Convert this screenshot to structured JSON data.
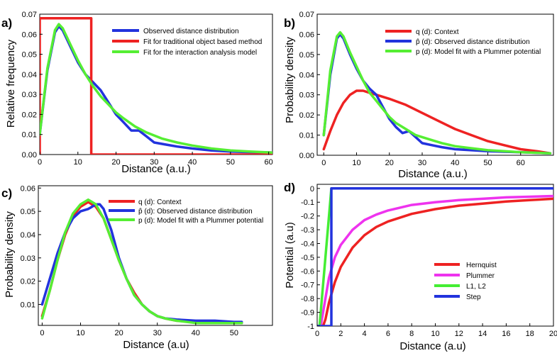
{
  "chart_data": [
    {
      "type": "line",
      "panel_label": "a)",
      "xlabel": "Distance (a.u.)",
      "ylabel": "Relative frequency",
      "xlim": [
        0,
        61
      ],
      "ylim": [
        0,
        0.07
      ],
      "xticks": [
        0,
        10,
        20,
        30,
        40,
        50,
        60
      ],
      "yticks": [
        0,
        0.01,
        0.02,
        0.03,
        0.04,
        0.05,
        0.06,
        0.07
      ],
      "ytick_labels": [
        "0.00",
        "0.01",
        "0.02",
        "0.03",
        "0.04",
        "0.05",
        "0.06",
        "0.07"
      ],
      "legend_position": "top-right",
      "series": [
        {
          "name": "Observed distance distribution",
          "color": "#2233dd",
          "x": [
            0,
            2,
            4,
            5,
            6,
            8,
            10,
            12,
            14,
            16,
            18,
            20,
            22,
            24,
            26,
            28,
            30,
            33,
            36,
            40,
            45,
            50,
            55,
            61
          ],
          "y": [
            0.01,
            0.042,
            0.061,
            0.064,
            0.062,
            0.054,
            0.046,
            0.04,
            0.036,
            0.032,
            0.026,
            0.02,
            0.016,
            0.012,
            0.012,
            0.009,
            0.006,
            0.005,
            0.004,
            0.003,
            0.002,
            0.0015,
            0.0012,
            0.001
          ]
        },
        {
          "name": "Fit for traditional object based method",
          "color": "#ee2222",
          "x": [
            0,
            0,
            13.5,
            13.5,
            61
          ],
          "y": [
            0,
            0.068,
            0.068,
            0,
            0
          ]
        },
        {
          "name": "Fit for the interaction analysis model",
          "color": "#55ee33",
          "x": [
            0,
            2,
            4,
            5,
            6,
            8,
            10,
            12,
            14,
            16,
            18,
            20,
            22,
            25,
            28,
            32,
            36,
            40,
            45,
            50,
            55,
            61
          ],
          "y": [
            0.01,
            0.043,
            0.062,
            0.065,
            0.063,
            0.055,
            0.047,
            0.04,
            0.034,
            0.029,
            0.025,
            0.021,
            0.018,
            0.014,
            0.011,
            0.008,
            0.006,
            0.0045,
            0.003,
            0.002,
            0.0015,
            0.001
          ]
        }
      ]
    },
    {
      "type": "line",
      "panel_label": "b)",
      "xlabel": "Distance (a.u.)",
      "ylabel": "Probability density",
      "xlim": [
        -2,
        70
      ],
      "ylim": [
        0,
        0.07
      ],
      "xticks": [
        0,
        10,
        20,
        30,
        40,
        50,
        60
      ],
      "yticks": [
        0,
        0.01,
        0.02,
        0.03,
        0.04,
        0.05,
        0.06,
        0.07
      ],
      "ytick_labels": [
        "0.00",
        "0.01",
        "0.02",
        "0.03",
        "0.04",
        "0.05",
        "0.06",
        "0.07"
      ],
      "legend_position": "top-right",
      "series": [
        {
          "name": "q (d): Context",
          "color": "#ee2222",
          "x": [
            0,
            2,
            4,
            6,
            8,
            10,
            12,
            14,
            16,
            20,
            25,
            30,
            35,
            40,
            45,
            50,
            55,
            60,
            65,
            69
          ],
          "y": [
            0.003,
            0.012,
            0.02,
            0.026,
            0.03,
            0.032,
            0.032,
            0.031,
            0.03,
            0.028,
            0.025,
            0.021,
            0.017,
            0.013,
            0.01,
            0.007,
            0.005,
            0.003,
            0.002,
            0.001
          ]
        },
        {
          "name": "p̂ (d): Observed distance distribution",
          "color": "#2233dd",
          "x": [
            0,
            2,
            4,
            5,
            6,
            8,
            10,
            12,
            14,
            16,
            18,
            20,
            22,
            24,
            26,
            28,
            30,
            33,
            36,
            40,
            45,
            50,
            60,
            69
          ],
          "y": [
            0.01,
            0.04,
            0.058,
            0.06,
            0.058,
            0.05,
            0.043,
            0.037,
            0.033,
            0.03,
            0.024,
            0.018,
            0.014,
            0.011,
            0.012,
            0.009,
            0.006,
            0.005,
            0.004,
            0.003,
            0.0025,
            0.002,
            0.0015,
            0.001
          ]
        },
        {
          "name": "p (d): Model fit with a Plummer potential",
          "color": "#55ee33",
          "x": [
            0,
            2,
            4,
            5,
            6,
            8,
            10,
            12,
            14,
            16,
            18,
            20,
            22,
            25,
            28,
            32,
            36,
            40,
            45,
            50,
            55,
            60,
            69
          ],
          "y": [
            0.01,
            0.042,
            0.059,
            0.061,
            0.059,
            0.051,
            0.044,
            0.037,
            0.031,
            0.027,
            0.023,
            0.019,
            0.016,
            0.013,
            0.01,
            0.008,
            0.006,
            0.0045,
            0.0035,
            0.0025,
            0.002,
            0.0015,
            0.001
          ]
        }
      ]
    },
    {
      "type": "line",
      "panel_label": "c)",
      "xlabel": "Distance (a.u)",
      "ylabel": "Probability density",
      "xlim": [
        -1,
        60
      ],
      "ylim": [
        0.001,
        0.061
      ],
      "xticks": [
        0,
        10,
        20,
        30,
        40,
        50
      ],
      "yticks": [
        0.01,
        0.02,
        0.03,
        0.04,
        0.05,
        0.06
      ],
      "ytick_labels": [
        "0.01",
        "0.02",
        "0.03",
        "0.04",
        "0.05",
        "0.06"
      ],
      "legend_position": "top-right",
      "series": [
        {
          "name": "q (d): Context",
          "color": "#ee2222",
          "x": [
            0,
            2,
            4,
            6,
            8,
            10,
            12,
            14,
            16,
            18,
            20,
            22,
            24,
            26,
            28,
            30,
            32,
            35,
            40,
            45,
            50,
            52
          ],
          "y": [
            0.005,
            0.016,
            0.029,
            0.04,
            0.048,
            0.052,
            0.054,
            0.052,
            0.047,
            0.038,
            0.029,
            0.021,
            0.015,
            0.01,
            0.007,
            0.005,
            0.004,
            0.003,
            0.0025,
            0.002,
            0.002,
            0.002
          ]
        },
        {
          "name": "p̂ (d): Observed distance distribution",
          "color": "#2233dd",
          "x": [
            0,
            2,
            4,
            6,
            8,
            10,
            12,
            13,
            14,
            15,
            16,
            18,
            20,
            22,
            24,
            26,
            28,
            30,
            32,
            35,
            40,
            45,
            50,
            52
          ],
          "y": [
            0.01,
            0.021,
            0.032,
            0.041,
            0.047,
            0.05,
            0.051,
            0.052,
            0.053,
            0.053,
            0.051,
            0.042,
            0.03,
            0.021,
            0.014,
            0.01,
            0.007,
            0.005,
            0.004,
            0.0035,
            0.003,
            0.003,
            0.0025,
            0.0025
          ]
        },
        {
          "name": "p (d): Model fit with a Plummer potential",
          "color": "#55ee33",
          "x": [
            0,
            2,
            4,
            6,
            8,
            10,
            12,
            14,
            16,
            18,
            20,
            22,
            24,
            26,
            28,
            30,
            32,
            35,
            40,
            45,
            50,
            52
          ],
          "y": [
            0.004,
            0.016,
            0.029,
            0.041,
            0.049,
            0.053,
            0.055,
            0.053,
            0.047,
            0.038,
            0.029,
            0.021,
            0.014,
            0.01,
            0.007,
            0.005,
            0.004,
            0.003,
            0.002,
            0.002,
            0.002,
            0.002
          ]
        }
      ]
    },
    {
      "type": "line",
      "panel_label": "d)",
      "xlabel": "Distance (a.u)",
      "ylabel": "Potential (a.u)",
      "xlim": [
        0,
        20
      ],
      "ylim": [
        -1,
        0.03
      ],
      "xticks": [
        0,
        2,
        4,
        6,
        8,
        10,
        12,
        14,
        16,
        18,
        20
      ],
      "yticks": [
        0,
        -0.1,
        -0.2,
        -0.3,
        -0.4,
        -0.5,
        -0.6,
        -0.7,
        -0.8,
        -0.9,
        -1
      ],
      "ytick_labels": [
        "0",
        "-0.1",
        "-0.2",
        "-0.3",
        "-0.4",
        "-0.5",
        "-0.6",
        "-0.7",
        "-0.8",
        "-0.9",
        "-1"
      ],
      "legend_position": "bottom-right",
      "series": [
        {
          "name": "Hernquist",
          "color": "#ee2222",
          "x": [
            0.5,
            0.7,
            1,
            1.5,
            2,
            3,
            4,
            5,
            6,
            8,
            10,
            12,
            14,
            16,
            18,
            20
          ],
          "y": [
            -1.0,
            -0.95,
            -0.83,
            -0.68,
            -0.57,
            -0.43,
            -0.34,
            -0.28,
            -0.24,
            -0.185,
            -0.15,
            -0.125,
            -0.11,
            -0.095,
            -0.085,
            -0.075
          ]
        },
        {
          "name": "Plummer",
          "color": "#ee33ee",
          "x": [
            0.3,
            0.5,
            1,
            1.5,
            2,
            3,
            4,
            5,
            6,
            8,
            10,
            12,
            14,
            16,
            18,
            20
          ],
          "y": [
            -1.0,
            -0.9,
            -0.65,
            -0.5,
            -0.41,
            -0.3,
            -0.23,
            -0.19,
            -0.16,
            -0.12,
            -0.1,
            -0.085,
            -0.075,
            -0.065,
            -0.06,
            -0.055
          ]
        },
        {
          "name": "L1, L2",
          "color": "#44ee33",
          "x": [
            0,
            0.2,
            1.2,
            1.2,
            20
          ],
          "y": [
            -1.0,
            -1.0,
            0,
            0,
            0
          ]
        },
        {
          "name": "Step",
          "color": "#2233dd",
          "x": [
            0,
            1.2,
            1.2,
            20
          ],
          "y": [
            -1.0,
            -1.0,
            0,
            0
          ]
        }
      ]
    }
  ]
}
